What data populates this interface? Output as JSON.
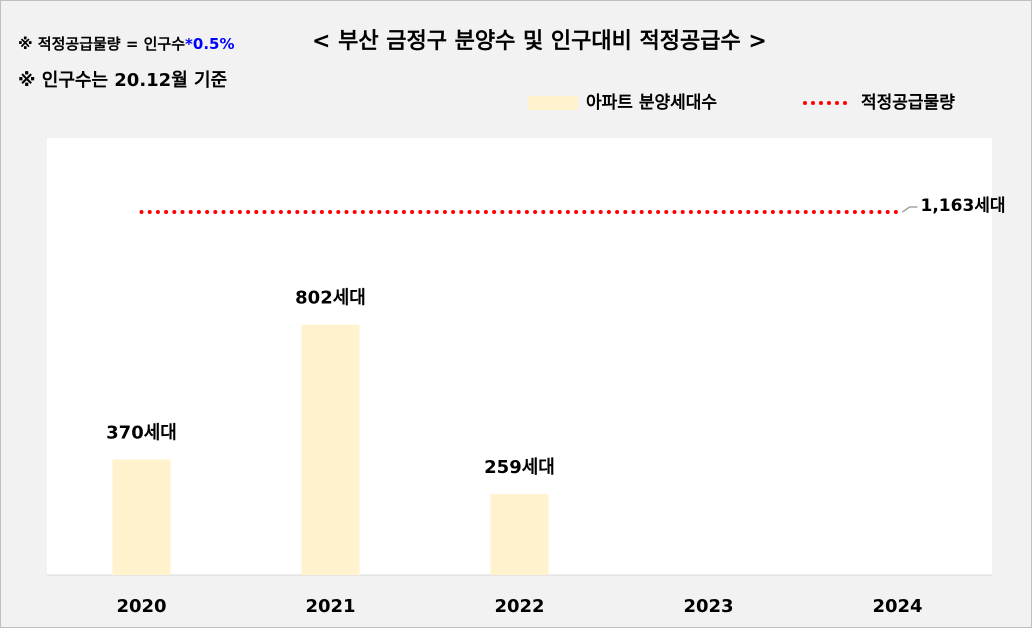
{
  "chart_data": {
    "type": "bar",
    "title": "< 부산 금정구 분양수 및 인구대비 적정공급수 >",
    "formula_note": "※ 적정공급물량 = 인구수",
    "formula_factor": "*0.5%",
    "population_note": "※ 인구수는 20.12월 기준",
    "categories": [
      "2020",
      "2021",
      "2022",
      "2023",
      "2024"
    ],
    "ylim": [
      0,
      1400
    ],
    "legend": "top-right",
    "series": [
      {
        "name": "아파트 분양세대수",
        "type": "bar",
        "color": "#fff2cc",
        "values": [
          370,
          802,
          259,
          null,
          null
        ],
        "value_labels": [
          "370세대",
          "802세대",
          "259세대",
          null,
          null
        ]
      },
      {
        "name": "적정공급물량",
        "type": "line",
        "color": "#ff0000",
        "values": [
          1163,
          1163,
          1163,
          1163,
          1163
        ],
        "value_labels": [
          null,
          null,
          null,
          null,
          "1,163세대"
        ]
      }
    ]
  }
}
